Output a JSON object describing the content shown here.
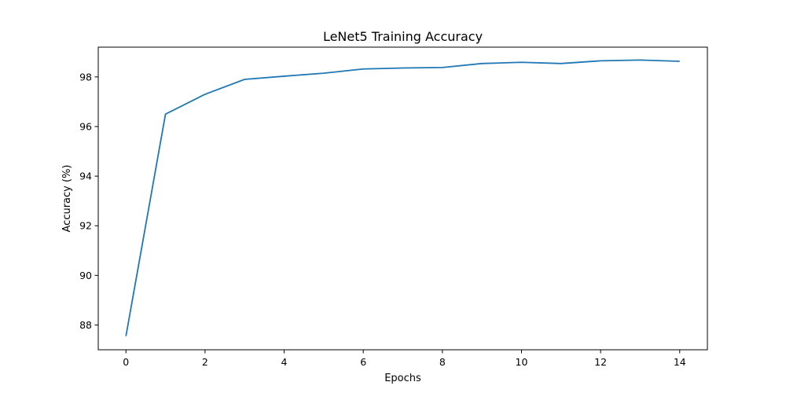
{
  "chart_data": {
    "type": "line",
    "title": "LeNet5 Training Accuracy",
    "xlabel": "Epochs",
    "ylabel": "Accuracy (%)",
    "xlim": [
      -0.7,
      14.7
    ],
    "ylim": [
      87.0,
      99.2
    ],
    "xticks": [
      0,
      2,
      4,
      6,
      8,
      10,
      12,
      14
    ],
    "yticks": [
      88,
      90,
      92,
      94,
      96,
      98
    ],
    "grid": false,
    "line_color": "#1f77b4",
    "series": [
      {
        "x": [
          0,
          1,
          2,
          3,
          4,
          5,
          6,
          7,
          8,
          9,
          10,
          11,
          12,
          13,
          14
        ],
        "values": [
          87.55,
          96.5,
          97.3,
          97.9,
          98.03,
          98.15,
          98.32,
          98.36,
          98.38,
          98.54,
          98.59,
          98.54,
          98.65,
          98.68,
          98.63
        ]
      }
    ]
  }
}
